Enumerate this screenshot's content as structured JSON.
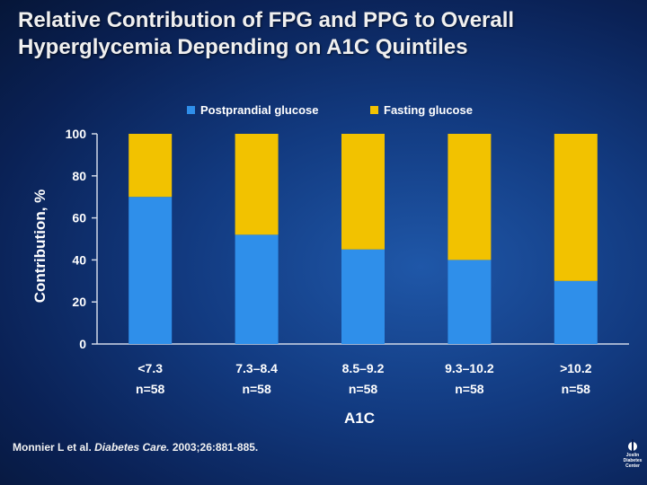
{
  "slide": {
    "title_line1": "Relative Contribution of FPG and PPG to Overall",
    "title_line2": "Hyperglycemia Depending on A1C Quintiles",
    "citation_authors": "Monnier L et al.",
    "citation_journal": "Diabetes Care.",
    "citation_ref": "2003;26:881-885.",
    "logo_lines": [
      "Joslin",
      "Diabetes",
      "Center"
    ]
  },
  "colors": {
    "postprandial": "#2f8fea",
    "fasting": "#f2c200",
    "axis": "#d0d8e8",
    "text": "#ffffff"
  },
  "chart_data": {
    "type": "bar",
    "stacked": true,
    "categories": [
      "<7.3",
      "7.3–8.4",
      "8.5–9.2",
      "9.3–10.2",
      ">10.2"
    ],
    "category_sublabels": [
      "n=58",
      "n=58",
      "n=58",
      "n=58",
      "n=58"
    ],
    "series": [
      {
        "name": "Postprandial glucose",
        "values": [
          70,
          52,
          45,
          40,
          30
        ]
      },
      {
        "name": "Fasting glucose",
        "values": [
          30,
          48,
          55,
          60,
          70
        ]
      }
    ],
    "xlabel": "A1C",
    "ylabel": "Contribution, %",
    "ylim": [
      0,
      100
    ],
    "yticks": [
      0,
      20,
      40,
      60,
      80,
      100
    ],
    "legend_position": "top-center",
    "grid": false
  }
}
